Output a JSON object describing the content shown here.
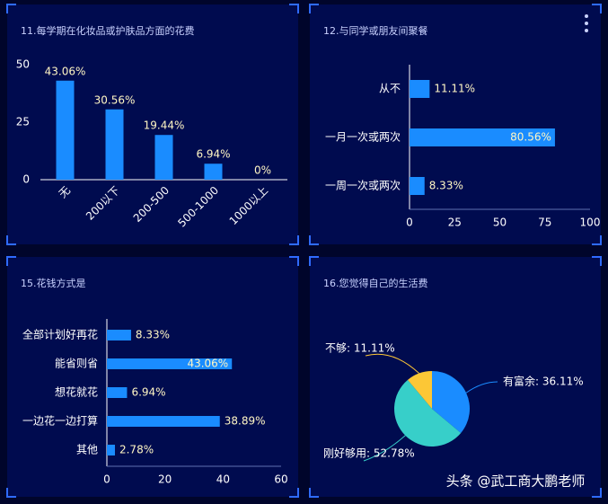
{
  "chart_data": [
    {
      "type": "vbar",
      "title": "11.每学期在化妆品或护肤品方面的花费",
      "categories": [
        "无",
        "200以下",
        "200-500",
        "500-1000",
        "1000以上"
      ],
      "values": [
        43.06,
        30.56,
        19.44,
        6.94,
        0
      ],
      "value_labels": [
        "43.06%",
        "30.56%",
        "19.44%",
        "6.94%",
        "0%"
      ],
      "color": "#1a8cff",
      "ylim": [
        0,
        50
      ],
      "yticks": [
        0,
        25,
        50
      ]
    },
    {
      "type": "hbar",
      "title": "12.与同学或朋友间聚餐",
      "categories": [
        "从不",
        "一月一次或两次",
        "一周一次或两次"
      ],
      "values": [
        11.11,
        80.56,
        8.33
      ],
      "value_labels": [
        "11.11%",
        "80.56%",
        "8.33%"
      ],
      "color": "#1a8cff",
      "xlim": [
        0,
        100
      ],
      "xticks": [
        0,
        25,
        50,
        75,
        100
      ]
    },
    {
      "type": "hbar",
      "title": "15.花钱方式是",
      "categories": [
        "全部计划好再花",
        "能省则省",
        "想花就花",
        "一边花一边打算",
        "其他"
      ],
      "values": [
        8.33,
        43.06,
        6.94,
        38.89,
        2.78
      ],
      "value_labels": [
        "8.33%",
        "43.06%",
        "6.94%",
        "38.89%",
        "2.78%"
      ],
      "color": "#1a8cff",
      "xlim": [
        0,
        60
      ],
      "xticks": [
        0,
        20,
        40,
        60
      ]
    },
    {
      "type": "pie",
      "title": "16.您觉得自己的生活费",
      "values": [
        36.11,
        52.78,
        11.11
      ],
      "value_labels": [
        "有富余: 36.11%",
        "刚好够用: 52.78%",
        "不够: 11.11%"
      ],
      "colors": [
        "#1a8cff",
        "#37cfc9",
        "#fcc736"
      ]
    }
  ],
  "watermark": "头条 @武工商大鹏老师"
}
